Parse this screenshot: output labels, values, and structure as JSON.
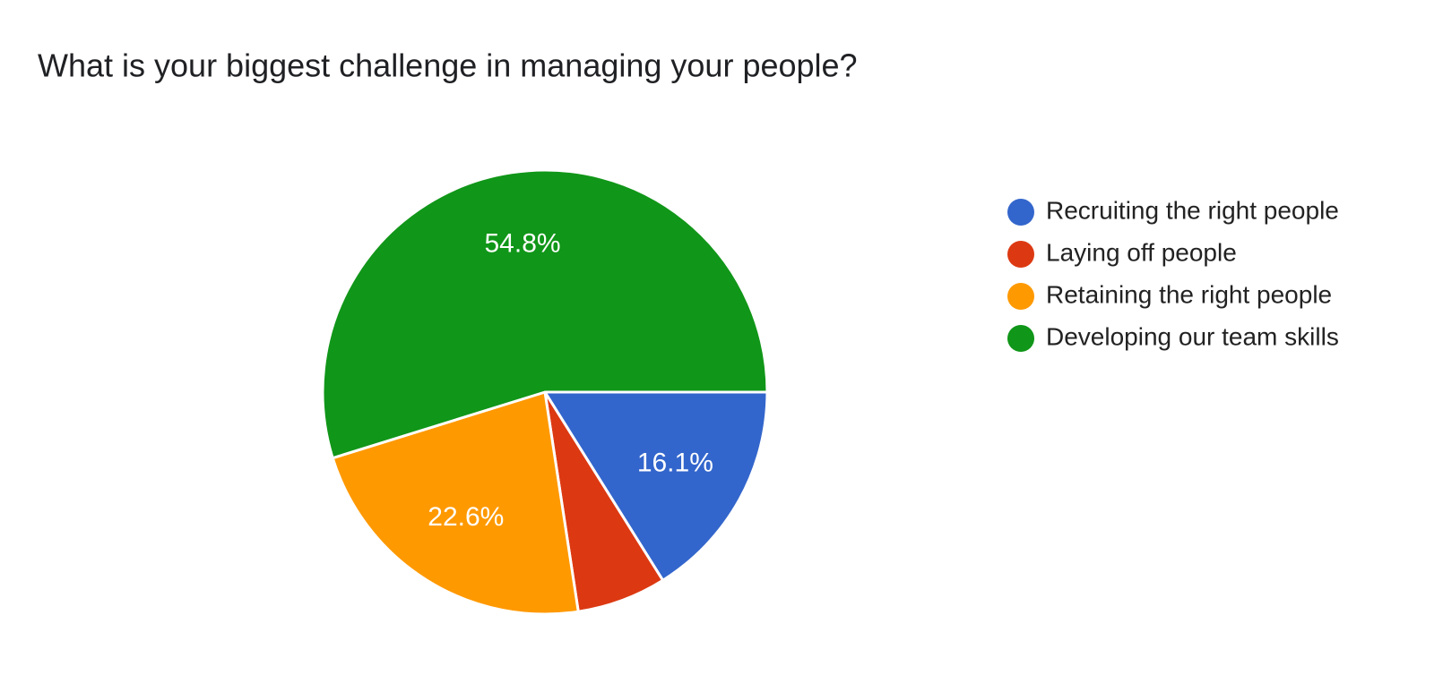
{
  "chart_data": {
    "type": "pie",
    "title": "What is your biggest challenge in managing your people?",
    "categories": [
      "Recruiting the right people",
      "Laying off people",
      "Retaining the right people",
      "Developing our team skills"
    ],
    "values": [
      16.1,
      6.5,
      22.6,
      54.8
    ],
    "value_labels": [
      "16.1%",
      null,
      "22.6%",
      "54.8%"
    ],
    "colors": [
      "#3366cc",
      "#dc3912",
      "#ff9900",
      "#109618"
    ],
    "legend": "right"
  }
}
